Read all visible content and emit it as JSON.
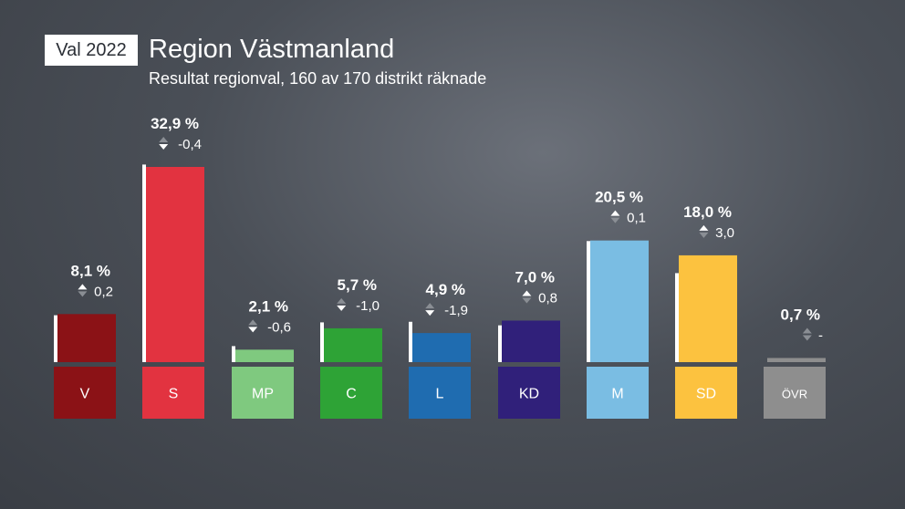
{
  "header": {
    "badge": "Val 2022",
    "title": "Region Västmanland",
    "subtitle": "Resultat regionval, 160 av 170 distrikt räknade"
  },
  "chart_data": {
    "type": "bar",
    "title": "Region Västmanland",
    "subtitle": "Resultat regionval, 160 av 170 distrikt räknade",
    "categories": [
      "V",
      "S",
      "MP",
      "C",
      "L",
      "KD",
      "M",
      "SD",
      "ÖVR"
    ],
    "values": [
      8.1,
      32.9,
      2.1,
      5.7,
      4.9,
      7.0,
      20.5,
      18.0,
      0.7
    ],
    "previous_values": [
      7.9,
      33.3,
      2.7,
      6.7,
      6.8,
      6.2,
      20.4,
      15.0,
      null
    ],
    "value_labels": [
      "8,1 %",
      "32,9 %",
      "2,1 %",
      "5,7 %",
      "4,9 %",
      "7,0 %",
      "20,5 %",
      "18,0 %",
      "0,7 %"
    ],
    "changes": [
      "0,2",
      "-0,4",
      "-0,6",
      "-1,0",
      "-1,9",
      "0,8",
      "0,1",
      "3,0",
      "-"
    ],
    "change_direction": [
      "up",
      "down",
      "down",
      "down",
      "down",
      "up",
      "up",
      "up",
      "none"
    ],
    "colors": [
      "#8b1216",
      "#e23340",
      "#7fc97f",
      "#2ea336",
      "#1f6cb0",
      "#30207a",
      "#7abde3",
      "#fcc23f",
      "#8e8e8e"
    ],
    "ylim": [
      0,
      33
    ]
  }
}
